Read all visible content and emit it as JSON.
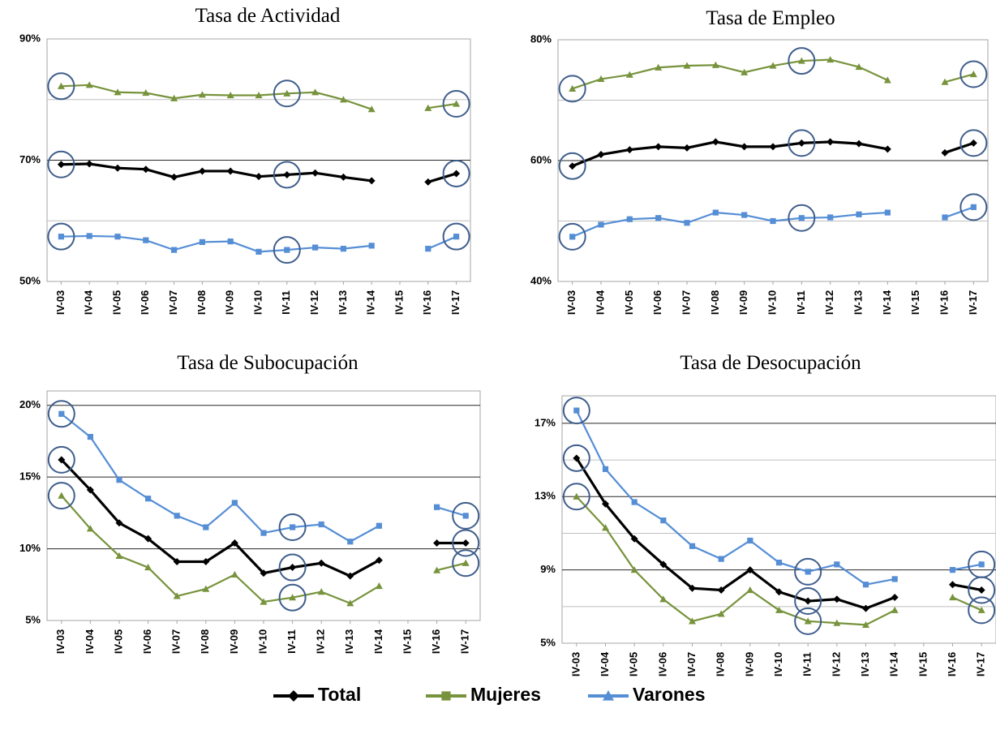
{
  "legend": [
    {
      "name": "Total",
      "color": "#000000",
      "marker": "diamond"
    },
    {
      "name": "Mujeres",
      "color": "#77933c",
      "marker": "square"
    },
    {
      "name": "Varones",
      "color": "#558ed5",
      "marker": "triangle"
    }
  ],
  "chart_data": [
    {
      "type": "line",
      "title": "Tasa de Actividad",
      "categories": [
        "IV-03",
        "IV-04",
        "IV-05",
        "IV-06",
        "IV-07",
        "IV-08",
        "IV-09",
        "IV-10",
        "IV-11",
        "IV-12",
        "IV-13",
        "IV-14",
        "IV-15",
        "IV-16",
        "IV-17"
      ],
      "ylim": [
        50,
        90
      ],
      "yticks": [
        {
          "value": 50,
          "label": "50%"
        },
        {
          "value": 70,
          "label": "70%"
        },
        {
          "value": 90,
          "label": "90%"
        }
      ],
      "minor_grid": [
        60,
        80
      ],
      "highlighted": [
        "IV-03",
        "IV-11",
        "IV-17"
      ],
      "series": [
        {
          "marker": "diamond",
          "values": [
            69.3,
            69.4,
            68.7,
            68.5,
            67.2,
            68.2,
            68.2,
            67.3,
            67.6,
            67.9,
            67.2,
            66.6,
            null,
            66.4,
            67.8
          ]
        },
        {
          "marker": "triangle",
          "values": [
            82.2,
            82.4,
            81.2,
            81.1,
            80.2,
            80.8,
            80.7,
            80.7,
            81.0,
            81.2,
            80.0,
            78.4,
            null,
            78.6,
            79.3
          ]
        },
        {
          "marker": "square",
          "values": [
            57.4,
            57.5,
            57.4,
            56.8,
            55.2,
            56.5,
            56.6,
            54.9,
            55.2,
            55.6,
            55.4,
            55.9,
            null,
            55.4,
            57.4
          ]
        }
      ]
    },
    {
      "type": "line",
      "title": "Tasa de Empleo",
      "categories": [
        "IV-03",
        "IV-04",
        "IV-05",
        "IV-06",
        "IV-07",
        "IV-08",
        "IV-09",
        "IV-10",
        "IV-11",
        "IV-12",
        "IV-13",
        "IV-14",
        "IV-15",
        "IV-16",
        "IV-17"
      ],
      "ylim": [
        40,
        80
      ],
      "yticks": [
        {
          "value": 40,
          "label": "40%"
        },
        {
          "value": 60,
          "label": "60%"
        },
        {
          "value": 80,
          "label": "80%"
        }
      ],
      "minor_grid": [
        50,
        70
      ],
      "highlighted": [
        "IV-03",
        "IV-11",
        "IV-17"
      ],
      "series": [
        {
          "marker": "diamond",
          "values": [
            59.1,
            61.0,
            61.8,
            62.3,
            62.1,
            63.1,
            62.3,
            62.3,
            62.9,
            63.1,
            62.8,
            61.9,
            null,
            61.3,
            62.9
          ]
        },
        {
          "marker": "triangle",
          "values": [
            71.9,
            73.5,
            74.2,
            75.4,
            75.7,
            75.8,
            74.6,
            75.7,
            76.5,
            76.7,
            75.5,
            73.3,
            null,
            73.0,
            74.3
          ]
        },
        {
          "marker": "square",
          "values": [
            47.4,
            49.4,
            50.3,
            50.5,
            49.7,
            51.4,
            51.0,
            50.0,
            50.5,
            50.6,
            51.1,
            51.4,
            null,
            50.6,
            52.3
          ]
        }
      ]
    },
    {
      "type": "line",
      "title": "Tasa de Subocupación",
      "categories": [
        "IV-03",
        "IV-04",
        "IV-05",
        "IV-06",
        "IV-07",
        "IV-08",
        "IV-09",
        "IV-10",
        "IV-11",
        "IV-12",
        "IV-13",
        "IV-14",
        "IV-15",
        "IV-16",
        "IV-17"
      ],
      "ylim": [
        5,
        21
      ],
      "yticks": [
        {
          "value": 5,
          "label": "5%"
        },
        {
          "value": 10,
          "label": "10%"
        },
        {
          "value": 15,
          "label": "15%"
        },
        {
          "value": 20,
          "label": "20%"
        }
      ],
      "minor_grid": [],
      "highlighted": [
        "IV-03",
        "IV-11",
        "IV-17"
      ],
      "series": [
        {
          "marker": "diamond",
          "values": [
            16.2,
            14.1,
            11.8,
            10.7,
            9.1,
            9.1,
            10.4,
            8.3,
            8.7,
            9.0,
            8.1,
            9.2,
            null,
            10.4,
            10.4
          ]
        },
        {
          "marker": "triangle",
          "values": [
            13.7,
            11.4,
            9.5,
            8.7,
            6.7,
            7.2,
            8.2,
            6.3,
            6.6,
            7.0,
            6.2,
            7.4,
            null,
            8.5,
            9.0
          ]
        },
        {
          "marker": "square",
          "values": [
            19.4,
            17.8,
            14.8,
            13.5,
            12.3,
            11.5,
            13.2,
            11.1,
            11.5,
            11.7,
            10.5,
            11.6,
            null,
            12.9,
            12.3
          ]
        }
      ]
    },
    {
      "type": "line",
      "title": "Tasa de Desocupación",
      "categories": [
        "IV-03",
        "IV-04",
        "IV-05",
        "IV-06",
        "IV-07",
        "IV-08",
        "IV-09",
        "IV-10",
        "IV-11",
        "IV-12",
        "IV-13",
        "IV-14",
        "IV-15",
        "IV-16",
        "IV-17"
      ],
      "ylim": [
        5,
        18.5
      ],
      "yticks": [
        {
          "value": 5,
          "label": "5%"
        },
        {
          "value": 9,
          "label": "9%"
        },
        {
          "value": 13,
          "label": "13%"
        },
        {
          "value": 17,
          "label": "17%"
        }
      ],
      "minor_grid": [
        7,
        11,
        15
      ],
      "highlighted": [
        "IV-03",
        "IV-11",
        "IV-17"
      ],
      "series": [
        {
          "marker": "diamond",
          "values": [
            15.1,
            12.6,
            10.7,
            9.3,
            8.0,
            7.9,
            9.0,
            7.8,
            7.3,
            7.4,
            6.9,
            7.5,
            null,
            8.2,
            7.9
          ]
        },
        {
          "marker": "triangle",
          "values": [
            13.0,
            11.3,
            9.0,
            7.4,
            6.2,
            6.6,
            7.9,
            6.8,
            6.2,
            6.1,
            6.0,
            6.8,
            null,
            7.5,
            6.8
          ]
        },
        {
          "marker": "square",
          "values": [
            17.7,
            14.5,
            12.7,
            11.7,
            10.3,
            9.6,
            10.6,
            9.4,
            8.9,
            9.3,
            8.2,
            8.5,
            null,
            9.0,
            9.3
          ]
        }
      ]
    }
  ]
}
